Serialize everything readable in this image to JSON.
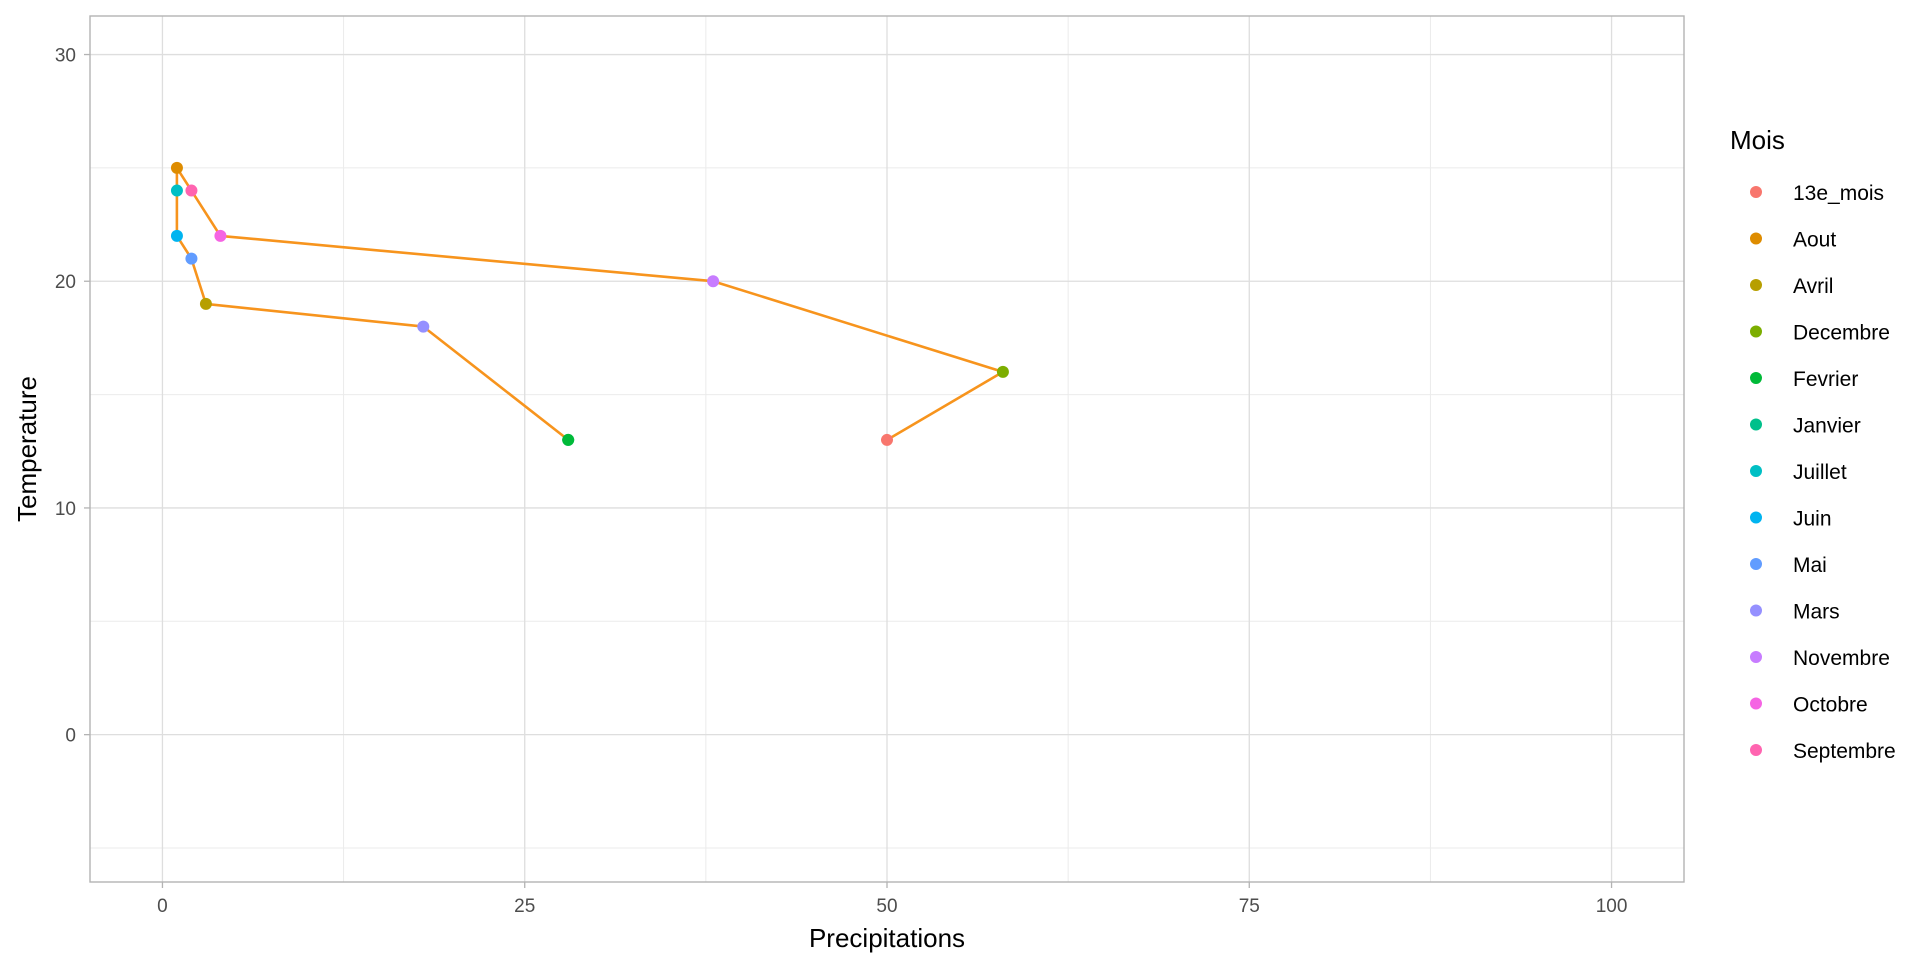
{
  "chart_data": {
    "type": "line",
    "xlabel": "Precipitations",
    "ylabel": "Temperature",
    "xlim": [
      -5,
      105
    ],
    "ylim": [
      -6.5,
      31.7
    ],
    "x_ticks": [
      0,
      25,
      50,
      75,
      100
    ],
    "y_ticks": [
      0,
      10,
      20,
      30
    ],
    "grid": true,
    "path_color": "#F7941D",
    "legend": {
      "title": "Mois",
      "placement": "right",
      "items": [
        {
          "label": "13e_mois",
          "color": "#F8766D"
        },
        {
          "label": "Aout",
          "color": "#DE8C00"
        },
        {
          "label": "Avril",
          "color": "#B79F00"
        },
        {
          "label": "Decembre",
          "color": "#7CAE00"
        },
        {
          "label": "Fevrier",
          "color": "#00BA38"
        },
        {
          "label": "Janvier",
          "color": "#00C08B"
        },
        {
          "label": "Juillet",
          "color": "#00BFC4"
        },
        {
          "label": "Juin",
          "color": "#00B4F0"
        },
        {
          "label": "Mai",
          "color": "#619CFF"
        },
        {
          "label": "Mars",
          "color": "#9590FF"
        },
        {
          "label": "Novembre",
          "color": "#C77CFF"
        },
        {
          "label": "Octobre",
          "color": "#F564E3"
        },
        {
          "label": "Septembre",
          "color": "#FF64B0"
        }
      ]
    },
    "path_order": [
      "Janvier",
      "Fevrier",
      "Mars",
      "Avril",
      "Mai",
      "Juin",
      "Juillet",
      "Aout",
      "Septembre",
      "Octobre",
      "Novembre",
      "Decembre",
      "13e_mois"
    ],
    "points": [
      {
        "mois": "Janvier",
        "precipitations": 28,
        "temperature": 13
      },
      {
        "mois": "Fevrier",
        "precipitations": 28,
        "temperature": 13
      },
      {
        "mois": "Mars",
        "precipitations": 18,
        "temperature": 18
      },
      {
        "mois": "Avril",
        "precipitations": 3,
        "temperature": 19
      },
      {
        "mois": "Mai",
        "precipitations": 2,
        "temperature": 21
      },
      {
        "mois": "Juin",
        "precipitations": 1,
        "temperature": 22
      },
      {
        "mois": "Juillet",
        "precipitations": 1,
        "temperature": 24
      },
      {
        "mois": "Aout",
        "precipitations": 1,
        "temperature": 25
      },
      {
        "mois": "Septembre",
        "precipitations": 2,
        "temperature": 24
      },
      {
        "mois": "Octobre",
        "precipitations": 4,
        "temperature": 22
      },
      {
        "mois": "Novembre",
        "precipitations": 38,
        "temperature": 20
      },
      {
        "mois": "Decembre",
        "precipitations": 58,
        "temperature": 16
      },
      {
        "mois": "13e_mois",
        "precipitations": 50,
        "temperature": 13
      }
    ]
  }
}
